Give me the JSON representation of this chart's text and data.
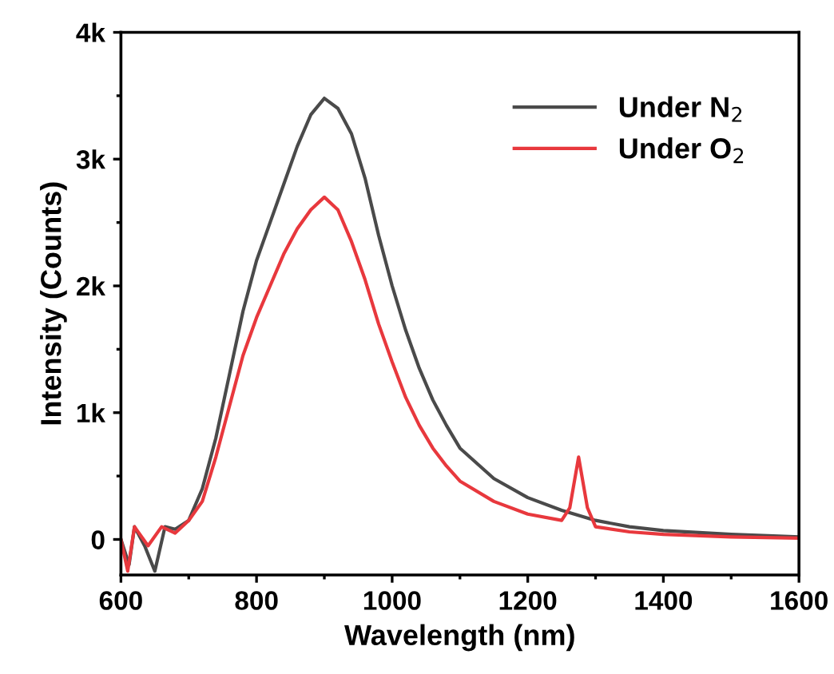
{
  "chart_data": {
    "type": "line",
    "xlabel": "Wavelength (nm)",
    "ylabel": "Intensity (Counts)",
    "xlim": [
      600,
      1600
    ],
    "xticks": [
      600,
      800,
      1000,
      1200,
      1400,
      1600
    ],
    "ylim": [
      -280,
      4000
    ],
    "yticks": [
      0,
      {
        "value": 1000,
        "label": "1k"
      },
      {
        "value": 2000,
        "label": "2k"
      },
      {
        "value": 3000,
        "label": "3k"
      },
      {
        "value": 4000,
        "label": "4k"
      }
    ],
    "grid": false,
    "legend": "top right",
    "marker": "none",
    "line_style": "solid",
    "series": [
      {
        "name": "Under N$_{2}$",
        "color": "#4a4a4a",
        "x": [
          600,
          612,
          620,
          635,
          650,
          665,
          680,
          700,
          720,
          740,
          760,
          780,
          800,
          820,
          840,
          860,
          880,
          900,
          920,
          940,
          960,
          980,
          1000,
          1020,
          1040,
          1060,
          1080,
          1100,
          1150,
          1200,
          1250,
          1300,
          1350,
          1400,
          1500,
          1600
        ],
        "values": [
          0,
          -200,
          100,
          -50,
          -250,
          100,
          80,
          150,
          400,
          800,
          1300,
          1800,
          2200,
          2500,
          2800,
          3100,
          3350,
          3480,
          3400,
          3200,
          2850,
          2400,
          2000,
          1650,
          1350,
          1100,
          900,
          720,
          480,
          330,
          230,
          150,
          100,
          70,
          40,
          20
        ]
      },
      {
        "name": "Under O$_{2}$",
        "color": "#e8383d",
        "x": [
          600,
          610,
          620,
          640,
          660,
          680,
          700,
          720,
          740,
          760,
          780,
          800,
          820,
          840,
          860,
          880,
          900,
          920,
          940,
          960,
          980,
          1000,
          1020,
          1040,
          1060,
          1080,
          1100,
          1150,
          1200,
          1250,
          1262,
          1275,
          1288,
          1300,
          1350,
          1400,
          1500,
          1600
        ],
        "values": [
          0,
          -250,
          100,
          -50,
          100,
          50,
          150,
          300,
          650,
          1050,
          1450,
          1750,
          2000,
          2250,
          2450,
          2600,
          2700,
          2600,
          2350,
          2050,
          1700,
          1400,
          1120,
          900,
          720,
          580,
          460,
          300,
          200,
          150,
          250,
          650,
          250,
          100,
          60,
          40,
          20,
          10
        ]
      }
    ]
  }
}
